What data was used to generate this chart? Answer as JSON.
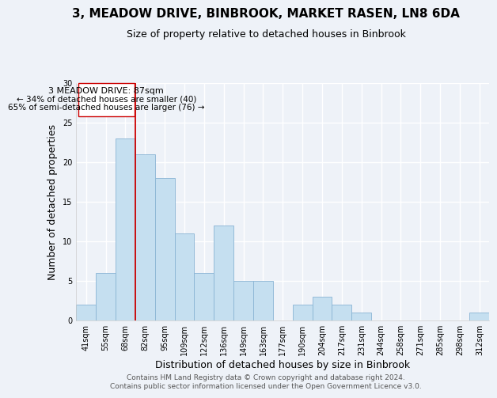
{
  "title": "3, MEADOW DRIVE, BINBROOK, MARKET RASEN, LN8 6DA",
  "subtitle": "Size of property relative to detached houses in Binbrook",
  "xlabel": "Distribution of detached houses by size in Binbrook",
  "ylabel": "Number of detached properties",
  "bar_color": "#c5dff0",
  "bar_edge_color": "#8ab4d4",
  "bin_labels": [
    "41sqm",
    "55sqm",
    "68sqm",
    "82sqm",
    "95sqm",
    "109sqm",
    "122sqm",
    "136sqm",
    "149sqm",
    "163sqm",
    "177sqm",
    "190sqm",
    "204sqm",
    "217sqm",
    "231sqm",
    "244sqm",
    "258sqm",
    "271sqm",
    "285sqm",
    "298sqm",
    "312sqm"
  ],
  "bar_heights": [
    2,
    6,
    23,
    21,
    18,
    11,
    6,
    12,
    5,
    5,
    0,
    2,
    3,
    2,
    1,
    0,
    0,
    0,
    0,
    0,
    1
  ],
  "ylim": [
    0,
    30
  ],
  "yticks": [
    0,
    5,
    10,
    15,
    20,
    25,
    30
  ],
  "vline_x_index": 3,
  "vline_color": "#cc0000",
  "annotation_title": "3 MEADOW DRIVE: 87sqm",
  "annotation_line1": "← 34% of detached houses are smaller (40)",
  "annotation_line2": "65% of semi-detached houses are larger (76) →",
  "footer1": "Contains HM Land Registry data © Crown copyright and database right 2024.",
  "footer2": "Contains public sector information licensed under the Open Government Licence v3.0.",
  "background_color": "#eef2f8",
  "grid_color": "#ffffff",
  "title_fontsize": 11,
  "subtitle_fontsize": 9,
  "axis_label_fontsize": 9,
  "tick_fontsize": 7,
  "footer_fontsize": 6.5,
  "annotation_fontsize": 8
}
